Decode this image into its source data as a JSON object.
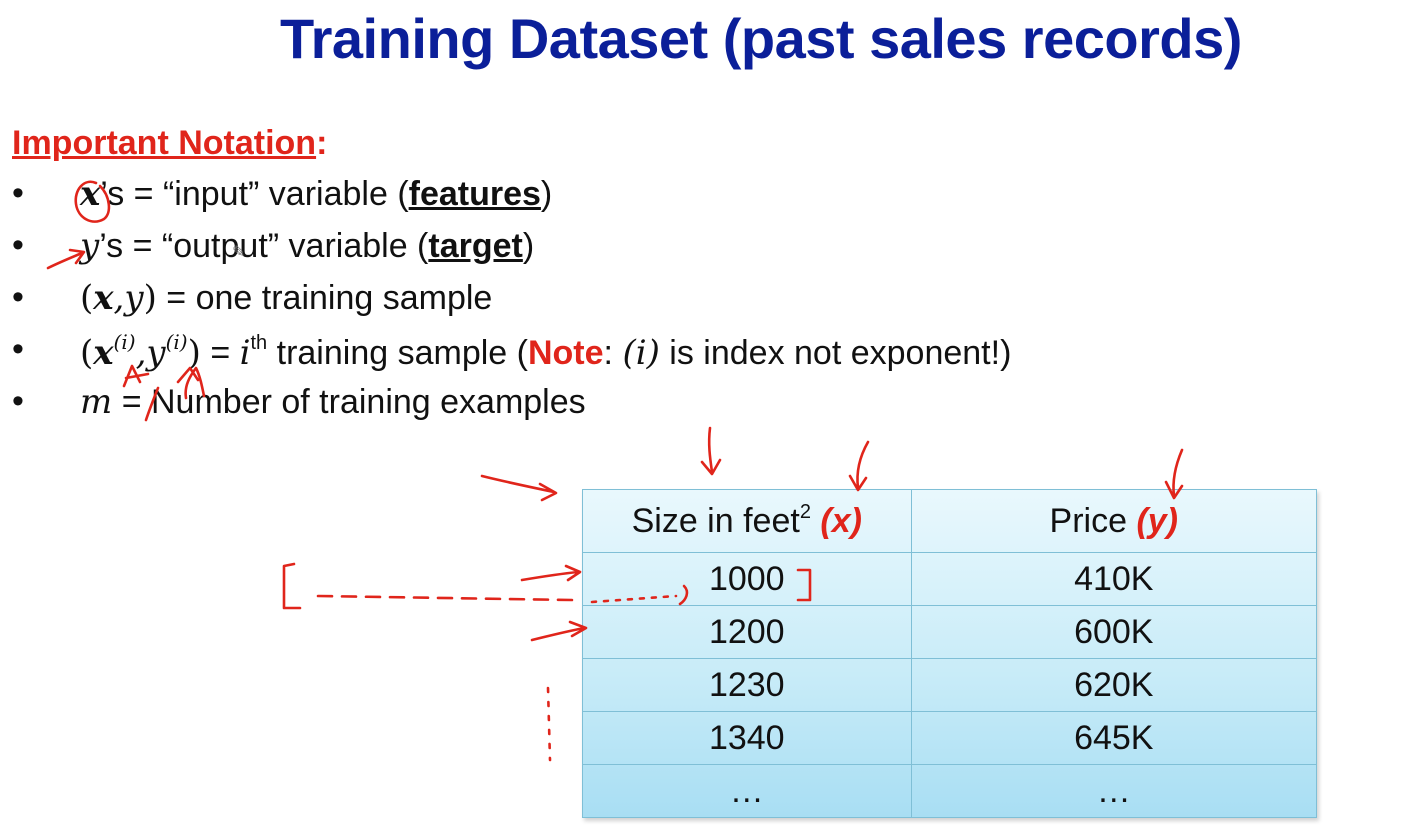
{
  "slide": {
    "title": "Training Dataset (past sales records)"
  },
  "notation": {
    "heading": "Important Notation",
    "colon": ":"
  },
  "bullets": {
    "marker": "•",
    "b1": {
      "var": "x",
      "possessive": "’s",
      "text": " = “input” variable (",
      "keyword": "features",
      "close": ")"
    },
    "b2": {
      "var": "y",
      "possessive": "’s",
      "text": " = “output” variable (",
      "keyword": "target",
      "close": ")"
    },
    "b3": {
      "open": "(",
      "x": "x",
      "comma": ",",
      "y": "y",
      "close": ")",
      "text": " = one training sample"
    },
    "b4": {
      "open": "(",
      "x": "x",
      "sup": "(i)",
      "comma": ",",
      "y": "y",
      "close": ")",
      "eq": " = ",
      "i": "i",
      "th": "th",
      "text": "  training sample (",
      "note": "Note",
      "rest_before": ": ",
      "index": "(i)",
      "rest_after": " is index not exponent!)"
    },
    "b5": {
      "var": "m",
      "text": " = Number of training examples"
    }
  },
  "table": {
    "col_x": {
      "label": "Size in feet",
      "exponent": "2",
      "var": "(x)"
    },
    "col_y": {
      "label": "Price",
      "var": "(y)"
    },
    "rows": [
      [
        "1000",
        "410K"
      ],
      [
        "1200",
        "600K"
      ],
      [
        "1230",
        "620K"
      ],
      [
        "1340",
        "645K"
      ],
      [
        "…",
        "…"
      ]
    ]
  },
  "colors": {
    "title": "#0b1f99",
    "accent_red": "#e0251b",
    "table_cell_light": "#e9f8fd",
    "table_cell_dark": "#a8def3",
    "table_border": "#7fbfd6"
  },
  "icons": {
    "pencil": "pencil-cursor-icon"
  }
}
